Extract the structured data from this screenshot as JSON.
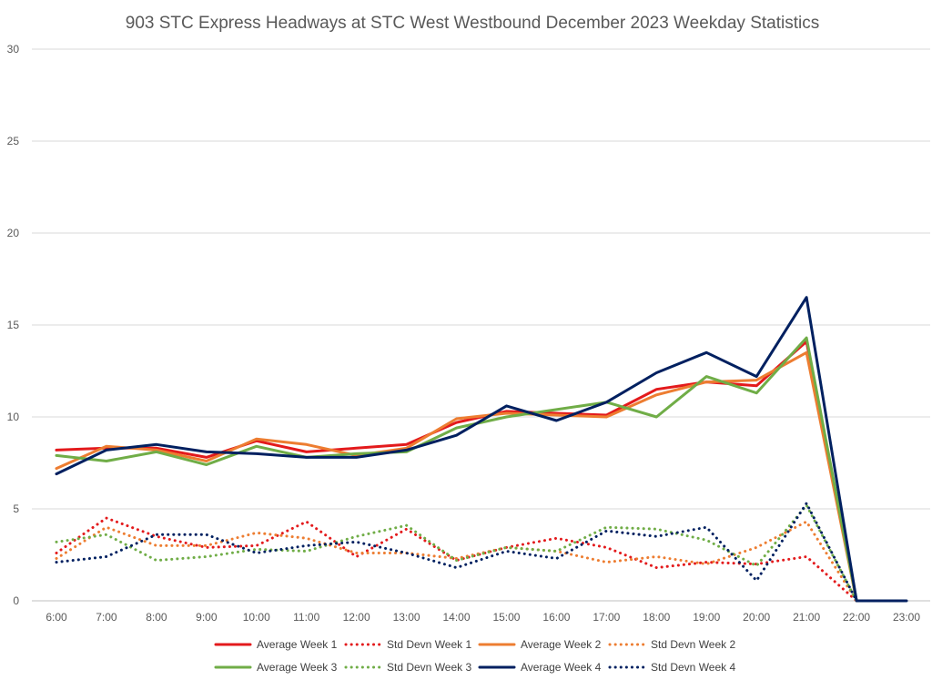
{
  "chart_data": {
    "type": "line",
    "title": "903 STC Express Headways at STC West Westbound December 2023 Weekday Statistics",
    "xlabel": "",
    "ylabel": "",
    "ylim": [
      0,
      30
    ],
    "yticks": [
      0,
      5,
      10,
      15,
      20,
      25,
      30
    ],
    "grid": "horizontal",
    "legend_position": "bottom",
    "categories": [
      "6:00",
      "7:00",
      "8:00",
      "9:00",
      "10:00",
      "11:00",
      "12:00",
      "13:00",
      "14:00",
      "15:00",
      "16:00",
      "17:00",
      "18:00",
      "19:00",
      "20:00",
      "21:00",
      "22:00",
      "23:00"
    ],
    "series": [
      {
        "name": "Average Week 1",
        "color": "#e31a1c",
        "style": "solid",
        "values": [
          8.2,
          8.3,
          8.3,
          7.8,
          8.7,
          8.1,
          8.3,
          8.5,
          9.7,
          10.3,
          10.2,
          10.1,
          11.5,
          11.9,
          11.7,
          14.1,
          0,
          null
        ]
      },
      {
        "name": "Std Devn Week 1",
        "color": "#e31a1c",
        "style": "dotted",
        "values": [
          2.6,
          4.5,
          3.5,
          2.9,
          3.0,
          4.3,
          2.4,
          3.9,
          2.2,
          2.9,
          3.4,
          2.9,
          1.8,
          2.1,
          2.0,
          2.4,
          0,
          null
        ]
      },
      {
        "name": "Average Week 2",
        "color": "#ed7d31",
        "style": "solid",
        "values": [
          7.2,
          8.4,
          8.2,
          7.6,
          8.8,
          8.5,
          7.9,
          8.3,
          9.9,
          10.2,
          10.1,
          10.0,
          11.2,
          11.9,
          12.0,
          13.5,
          0,
          null
        ]
      },
      {
        "name": "Std Devn Week 2",
        "color": "#ed7d31",
        "style": "dotted",
        "values": [
          2.3,
          4.0,
          3.0,
          3.0,
          3.7,
          3.4,
          2.6,
          2.6,
          2.3,
          2.9,
          2.7,
          2.1,
          2.4,
          2.0,
          2.9,
          4.3,
          0,
          null
        ]
      },
      {
        "name": "Average Week 3",
        "color": "#70ad47",
        "style": "solid",
        "values": [
          7.9,
          7.6,
          8.1,
          7.4,
          8.4,
          7.8,
          8.0,
          8.1,
          9.4,
          10.0,
          10.4,
          10.8,
          10.0,
          12.2,
          11.3,
          14.3,
          0,
          null
        ]
      },
      {
        "name": "Std Devn Week 3",
        "color": "#70ad47",
        "style": "dotted",
        "values": [
          3.2,
          3.6,
          2.2,
          2.4,
          2.8,
          2.7,
          3.5,
          4.1,
          2.2,
          2.9,
          2.7,
          4.0,
          3.9,
          3.3,
          1.9,
          5.2,
          0,
          null
        ]
      },
      {
        "name": "Average Week 4",
        "color": "#002060",
        "style": "solid",
        "values": [
          6.9,
          8.2,
          8.5,
          8.1,
          8.0,
          7.8,
          7.8,
          8.2,
          9.0,
          10.6,
          9.8,
          10.8,
          12.4,
          13.5,
          12.2,
          16.5,
          0,
          0
        ]
      },
      {
        "name": "Std Devn Week 4",
        "color": "#002060",
        "style": "dotted",
        "values": [
          2.1,
          2.4,
          3.6,
          3.6,
          2.6,
          3.0,
          3.2,
          2.6,
          1.8,
          2.7,
          2.3,
          3.8,
          3.5,
          4.0,
          1.1,
          5.3,
          0,
          0
        ]
      }
    ]
  }
}
